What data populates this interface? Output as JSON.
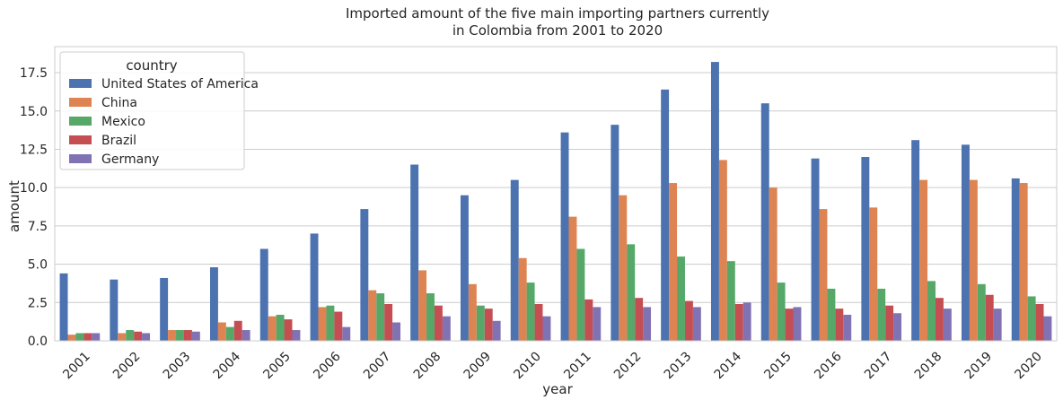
{
  "chart_data": {
    "type": "bar",
    "title_lines": [
      "Imported amount of the five main importing partners currently",
      "in Colombia from 2001 to 2020"
    ],
    "xlabel": "year",
    "ylabel": "amount",
    "ylim": [
      0,
      19.2
    ],
    "yticks": [
      "0.0",
      "2.5",
      "5.0",
      "7.5",
      "10.0",
      "12.5",
      "15.0",
      "17.5"
    ],
    "grid": "horizontal",
    "legend": {
      "title": "country",
      "placement": "top-left"
    },
    "categories": [
      "2001",
      "2002",
      "2003",
      "2004",
      "2005",
      "2006",
      "2007",
      "2008",
      "2009",
      "2010",
      "2011",
      "2012",
      "2013",
      "2014",
      "2015",
      "2016",
      "2017",
      "2018",
      "2019",
      "2020"
    ],
    "series": [
      {
        "name": "United States of America",
        "color": "#4c72b0",
        "values": [
          4.4,
          4.0,
          4.1,
          4.8,
          6.0,
          7.0,
          8.6,
          11.5,
          9.5,
          10.5,
          13.6,
          14.1,
          16.4,
          18.2,
          15.5,
          11.9,
          12.0,
          13.1,
          12.8,
          10.6
        ]
      },
      {
        "name": "China",
        "color": "#dd8452",
        "values": [
          0.4,
          0.5,
          0.7,
          1.2,
          1.6,
          2.2,
          3.3,
          4.6,
          3.7,
          5.4,
          8.1,
          9.5,
          10.3,
          11.8,
          10.0,
          8.6,
          8.7,
          10.5,
          10.5,
          10.3
        ]
      },
      {
        "name": "Mexico",
        "color": "#55a868",
        "values": [
          0.5,
          0.7,
          0.7,
          0.9,
          1.7,
          2.3,
          3.1,
          3.1,
          2.3,
          3.8,
          6.0,
          6.3,
          5.5,
          5.2,
          3.8,
          3.4,
          3.4,
          3.9,
          3.7,
          2.9
        ]
      },
      {
        "name": "Brazil",
        "color": "#c44e52",
        "values": [
          0.5,
          0.6,
          0.7,
          1.3,
          1.4,
          1.9,
          2.4,
          2.3,
          2.1,
          2.4,
          2.7,
          2.8,
          2.6,
          2.4,
          2.1,
          2.1,
          2.3,
          2.8,
          3.0,
          2.4
        ]
      },
      {
        "name": "Germany",
        "color": "#8172b3",
        "values": [
          0.5,
          0.5,
          0.6,
          0.7,
          0.7,
          0.9,
          1.2,
          1.6,
          1.3,
          1.6,
          2.2,
          2.2,
          2.2,
          2.5,
          2.2,
          1.7,
          1.8,
          2.1,
          2.1,
          1.6
        ]
      }
    ]
  }
}
